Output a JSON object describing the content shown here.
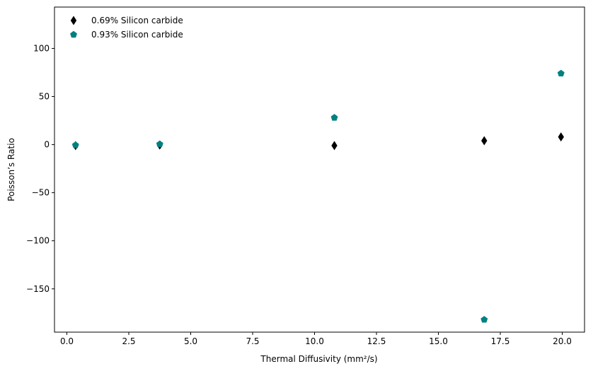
{
  "chart_data": {
    "type": "scatter",
    "xlabel": "Thermal Diffusivity (mm²/s)",
    "ylabel": "Poisson’s Ratio",
    "xlim": [
      -0.5,
      20.9
    ],
    "ylim": [
      -195,
      143
    ],
    "x_ticks": [
      0.0,
      2.5,
      5.0,
      7.5,
      10.0,
      12.5,
      15.0,
      17.5,
      20.0
    ],
    "x_tick_labels": [
      "0.0",
      "2.5",
      "5.0",
      "7.5",
      "10.0",
      "12.5",
      "15.0",
      "17.5",
      "20.0"
    ],
    "y_ticks": [
      100,
      50,
      0,
      -50,
      -100,
      -150
    ],
    "y_tick_labels": [
      "100",
      "50",
      "0",
      "−50",
      "−100",
      "−150"
    ],
    "grid": false,
    "legend_position": "top-left",
    "series": [
      {
        "name": "0.69% Silicon carbide",
        "color": "#000000",
        "marker": "diamond",
        "x": [
          0.35,
          3.75,
          10.8,
          16.85,
          19.95
        ],
        "y": [
          -1,
          -0.5,
          -1,
          4,
          8
        ]
      },
      {
        "name": "0.93% Silicon carbide",
        "color": "#008080",
        "marker": "pentagon",
        "x": [
          0.35,
          3.75,
          10.8,
          16.85,
          19.95
        ],
        "y": [
          -0.5,
          0.5,
          28,
          -182,
          74
        ]
      }
    ]
  }
}
